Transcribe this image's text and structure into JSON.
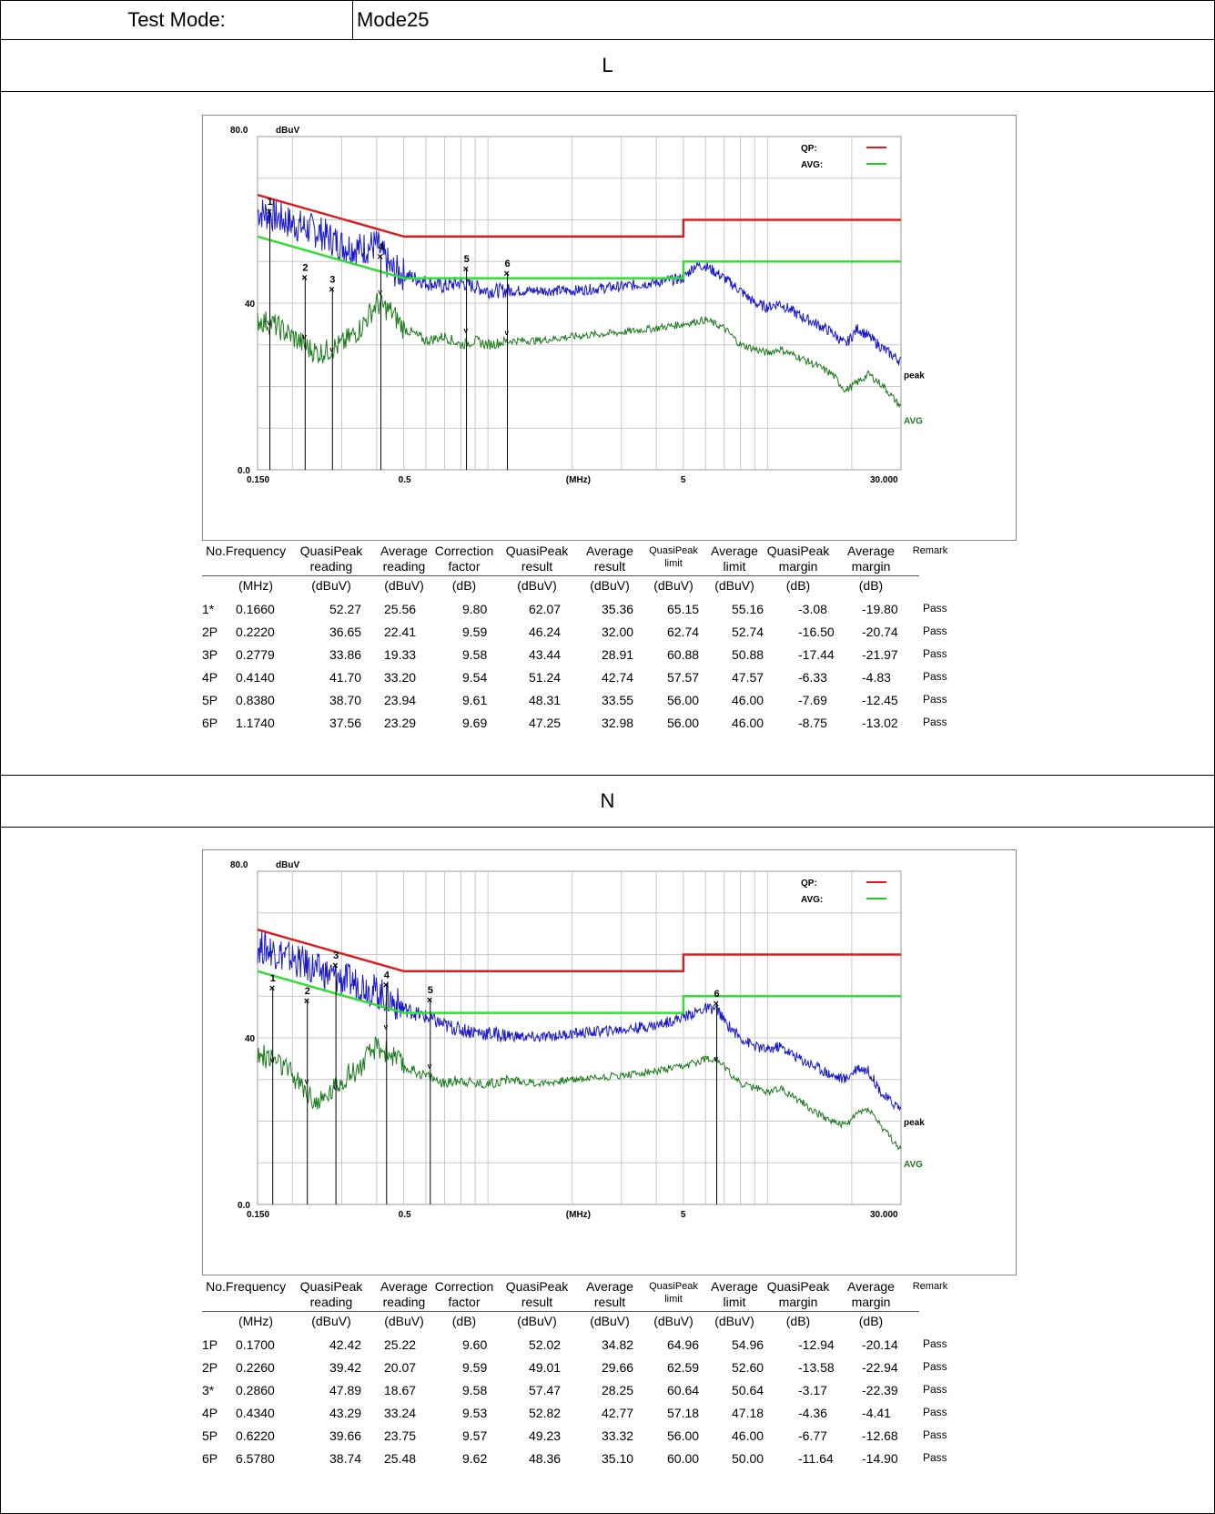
{
  "header": {
    "label": "Test Mode:",
    "value": "Mode25"
  },
  "columns": [
    {
      "l1": "No.",
      "l2": "",
      "unit": ""
    },
    {
      "l1": "Frequency",
      "l2": "",
      "unit": "(MHz)"
    },
    {
      "l1": "QuasiPeak",
      "l2": "reading",
      "unit": "(dBuV)"
    },
    {
      "l1": "Average",
      "l2": "reading",
      "unit": "(dBuV)"
    },
    {
      "l1": "Correction",
      "l2": "factor",
      "unit": "(dB)"
    },
    {
      "l1": "QuasiPeak",
      "l2": "result",
      "unit": "(dBuV)"
    },
    {
      "l1": "Average",
      "l2": "result",
      "unit": "(dBuV)"
    },
    {
      "l1": "QuasiPeak",
      "l2": "limit",
      "unit": "(dBuV)"
    },
    {
      "l1": "Average",
      "l2": "limit",
      "unit": "(dBuV)"
    },
    {
      "l1": "QuasiPeak",
      "l2": "margin",
      "unit": "(dB)"
    },
    {
      "l1": "Average",
      "l2": "margin",
      "unit": "(dB)"
    },
    {
      "l1": "Remark",
      "l2": "",
      "unit": ""
    }
  ],
  "chart_data": [
    {
      "type": "line",
      "section": "L",
      "unit_label": "dBuV",
      "xlabel": "(MHz)",
      "xscale": "log",
      "xlim": [
        0.15,
        30
      ],
      "ylim": [
        0,
        80
      ],
      "x_ticks": [
        "0.150",
        "0.5",
        "5",
        "30.000"
      ],
      "y_ticks": [
        "80.0",
        "40",
        "0.0"
      ],
      "legend": [
        {
          "label": "QP:",
          "color": "#d62020"
        },
        {
          "label": "AVG:",
          "color": "#22cc22"
        }
      ],
      "trace_labels": {
        "peak": "peak",
        "avg": "AVG"
      },
      "qp_limit": [
        [
          0.15,
          66
        ],
        [
          0.5,
          56
        ],
        [
          5,
          56
        ],
        [
          5,
          60
        ],
        [
          30,
          60
        ]
      ],
      "avg_limit": [
        [
          0.15,
          56
        ],
        [
          0.5,
          46
        ],
        [
          5,
          46
        ],
        [
          5,
          50
        ],
        [
          30,
          50
        ]
      ],
      "peak_trace": [
        [
          0.15,
          62
        ],
        [
          0.17,
          61
        ],
        [
          0.2,
          59
        ],
        [
          0.25,
          57
        ],
        [
          0.3,
          54
        ],
        [
          0.35,
          53
        ],
        [
          0.4,
          54
        ],
        [
          0.45,
          48
        ],
        [
          0.5,
          47
        ],
        [
          0.6,
          45
        ],
        [
          0.7,
          44
        ],
        [
          0.8,
          45
        ],
        [
          1.0,
          43
        ],
        [
          1.5,
          43
        ],
        [
          2,
          43
        ],
        [
          3,
          44
        ],
        [
          4,
          45
        ],
        [
          5,
          46
        ],
        [
          5.5,
          49
        ],
        [
          6,
          49
        ],
        [
          7,
          46
        ],
        [
          8,
          43
        ],
        [
          9,
          40
        ],
        [
          10,
          39
        ],
        [
          11,
          40
        ],
        [
          13,
          37
        ],
        [
          15,
          35
        ],
        [
          17,
          33
        ],
        [
          19,
          30
        ],
        [
          21,
          34
        ],
        [
          23,
          32
        ],
        [
          26,
          29
        ],
        [
          30,
          26
        ]
      ],
      "avg_trace": [
        [
          0.15,
          36
        ],
        [
          0.17,
          35
        ],
        [
          0.2,
          32
        ],
        [
          0.23,
          29
        ],
        [
          0.25,
          28
        ],
        [
          0.3,
          30
        ],
        [
          0.35,
          34
        ],
        [
          0.4,
          40
        ],
        [
          0.45,
          38
        ],
        [
          0.5,
          34
        ],
        [
          0.6,
          31
        ],
        [
          0.7,
          32
        ],
        [
          0.8,
          30
        ],
        [
          0.9,
          31
        ],
        [
          1.0,
          30
        ],
        [
          1.2,
          31
        ],
        [
          1.5,
          31
        ],
        [
          2,
          32
        ],
        [
          3,
          33
        ],
        [
          4,
          34
        ],
        [
          5,
          35
        ],
        [
          6,
          36
        ],
        [
          7,
          34
        ],
        [
          8,
          30
        ],
        [
          9,
          29
        ],
        [
          10,
          28
        ],
        [
          11,
          29
        ],
        [
          13,
          27
        ],
        [
          15,
          25
        ],
        [
          17,
          23
        ],
        [
          19,
          19
        ],
        [
          21,
          21
        ],
        [
          23,
          23
        ],
        [
          26,
          20
        ],
        [
          30,
          15
        ]
      ],
      "markers": [
        {
          "no": "1",
          "x": 0.166,
          "qp": 62.07,
          "avg": 35.36
        },
        {
          "no": "2",
          "x": 0.222,
          "qp": 46.24,
          "avg": 32.0
        },
        {
          "no": "3",
          "x": 0.2779,
          "qp": 43.44,
          "avg": 28.91
        },
        {
          "no": "4",
          "x": 0.414,
          "qp": 51.24,
          "avg": 42.74
        },
        {
          "no": "5",
          "x": 0.838,
          "qp": 48.31,
          "avg": 33.55
        },
        {
          "no": "6",
          "x": 1.174,
          "qp": 47.25,
          "avg": 32.98
        }
      ]
    },
    {
      "type": "line",
      "section": "N",
      "unit_label": "dBuV",
      "xlabel": "(MHz)",
      "xscale": "log",
      "xlim": [
        0.15,
        30
      ],
      "ylim": [
        0,
        80
      ],
      "x_ticks": [
        "0.150",
        "0.5",
        "5",
        "30.000"
      ],
      "y_ticks": [
        "80.0",
        "40",
        "0.0"
      ],
      "legend": [
        {
          "label": "QP:",
          "color": "#d62020"
        },
        {
          "label": "AVG:",
          "color": "#22cc22"
        }
      ],
      "trace_labels": {
        "peak": "peak",
        "avg": "AVG"
      },
      "qp_limit": [
        [
          0.15,
          66
        ],
        [
          0.5,
          56
        ],
        [
          5,
          56
        ],
        [
          5,
          60
        ],
        [
          30,
          60
        ]
      ],
      "avg_limit": [
        [
          0.15,
          56
        ],
        [
          0.5,
          46
        ],
        [
          5,
          46
        ],
        [
          5,
          50
        ],
        [
          30,
          50
        ]
      ],
      "peak_trace": [
        [
          0.15,
          62
        ],
        [
          0.17,
          61
        ],
        [
          0.2,
          59
        ],
        [
          0.25,
          56
        ],
        [
          0.3,
          54
        ],
        [
          0.35,
          53
        ],
        [
          0.4,
          51
        ],
        [
          0.45,
          49
        ],
        [
          0.5,
          47
        ],
        [
          0.6,
          45
        ],
        [
          0.7,
          43
        ],
        [
          0.8,
          42
        ],
        [
          1.0,
          41
        ],
        [
          1.5,
          40
        ],
        [
          2,
          41
        ],
        [
          3,
          42
        ],
        [
          4,
          43
        ],
        [
          5,
          45
        ],
        [
          6,
          47
        ],
        [
          6.6,
          47
        ],
        [
          7,
          44
        ],
        [
          8,
          40
        ],
        [
          9,
          38
        ],
        [
          10,
          37
        ],
        [
          11,
          38
        ],
        [
          13,
          35
        ],
        [
          15,
          33
        ],
        [
          17,
          31
        ],
        [
          19,
          30
        ],
        [
          21,
          33
        ],
        [
          23,
          32
        ],
        [
          26,
          26
        ],
        [
          30,
          23
        ]
      ],
      "avg_trace": [
        [
          0.15,
          36
        ],
        [
          0.17,
          35
        ],
        [
          0.2,
          31
        ],
        [
          0.23,
          26
        ],
        [
          0.25,
          24
        ],
        [
          0.3,
          30
        ],
        [
          0.35,
          33
        ],
        [
          0.4,
          38
        ],
        [
          0.45,
          36
        ],
        [
          0.5,
          33
        ],
        [
          0.6,
          31
        ],
        [
          0.7,
          29
        ],
        [
          0.8,
          30
        ],
        [
          0.9,
          29
        ],
        [
          1.0,
          29
        ],
        [
          1.2,
          30
        ],
        [
          1.5,
          29
        ],
        [
          2,
          30
        ],
        [
          3,
          31
        ],
        [
          4,
          32
        ],
        [
          5,
          33
        ],
        [
          6,
          35
        ],
        [
          6.6,
          35
        ],
        [
          7,
          33
        ],
        [
          8,
          29
        ],
        [
          9,
          28
        ],
        [
          10,
          27
        ],
        [
          11,
          28
        ],
        [
          13,
          25
        ],
        [
          15,
          22
        ],
        [
          17,
          20
        ],
        [
          19,
          19
        ],
        [
          21,
          22
        ],
        [
          23,
          23
        ],
        [
          26,
          18
        ],
        [
          30,
          13
        ]
      ],
      "markers": [
        {
          "no": "1",
          "x": 0.17,
          "qp": 52.02,
          "avg": 34.82
        },
        {
          "no": "2",
          "x": 0.226,
          "qp": 49.01,
          "avg": 29.66
        },
        {
          "no": "3",
          "x": 0.286,
          "qp": 57.47,
          "avg": 28.25
        },
        {
          "no": "4",
          "x": 0.434,
          "qp": 52.82,
          "avg": 42.77
        },
        {
          "no": "5",
          "x": 0.622,
          "qp": 49.23,
          "avg": 33.32
        },
        {
          "no": "6",
          "x": 6.578,
          "qp": 48.36,
          "avg": 35.1
        }
      ]
    }
  ],
  "sections": [
    {
      "title": "L",
      "rows": [
        [
          "1*",
          "0.1660",
          "52.27",
          "25.56",
          "9.80",
          "62.07",
          "35.36",
          "65.15",
          "55.16",
          "-3.08",
          "-19.80",
          "Pass"
        ],
        [
          "2P",
          "0.2220",
          "36.65",
          "22.41",
          "9.59",
          "46.24",
          "32.00",
          "62.74",
          "52.74",
          "-16.50",
          "-20.74",
          "Pass"
        ],
        [
          "3P",
          "0.2779",
          "33.86",
          "19.33",
          "9.58",
          "43.44",
          "28.91",
          "60.88",
          "50.88",
          "-17.44",
          "-21.97",
          "Pass"
        ],
        [
          "4P",
          "0.4140",
          "41.70",
          "33.20",
          "9.54",
          "51.24",
          "42.74",
          "57.57",
          "47.57",
          "-6.33",
          "-4.83",
          "Pass"
        ],
        [
          "5P",
          "0.8380",
          "38.70",
          "23.94",
          "9.61",
          "48.31",
          "33.55",
          "56.00",
          "46.00",
          "-7.69",
          "-12.45",
          "Pass"
        ],
        [
          "6P",
          "1.1740",
          "37.56",
          "23.29",
          "9.69",
          "47.25",
          "32.98",
          "56.00",
          "46.00",
          "-8.75",
          "-13.02",
          "Pass"
        ]
      ]
    },
    {
      "title": "N",
      "rows": [
        [
          "1P",
          "0.1700",
          "42.42",
          "25.22",
          "9.60",
          "52.02",
          "34.82",
          "64.96",
          "54.96",
          "-12.94",
          "-20.14",
          "Pass"
        ],
        [
          "2P",
          "0.2260",
          "39.42",
          "20.07",
          "9.59",
          "49.01",
          "29.66",
          "62.59",
          "52.60",
          "-13.58",
          "-22.94",
          "Pass"
        ],
        [
          "3*",
          "0.2860",
          "47.89",
          "18.67",
          "9.58",
          "57.47",
          "28.25",
          "60.64",
          "50.64",
          "-3.17",
          "-22.39",
          "Pass"
        ],
        [
          "4P",
          "0.4340",
          "43.29",
          "33.24",
          "9.53",
          "52.82",
          "42.77",
          "57.18",
          "47.18",
          "-4.36",
          "-4.41",
          "Pass"
        ],
        [
          "5P",
          "0.6220",
          "39.66",
          "23.75",
          "9.57",
          "49.23",
          "33.32",
          "56.00",
          "46.00",
          "-6.77",
          "-12.68",
          "Pass"
        ],
        [
          "6P",
          "6.5780",
          "38.74",
          "25.48",
          "9.62",
          "48.36",
          "35.10",
          "60.00",
          "50.00",
          "-11.64",
          "-14.90",
          "Pass"
        ]
      ]
    }
  ]
}
